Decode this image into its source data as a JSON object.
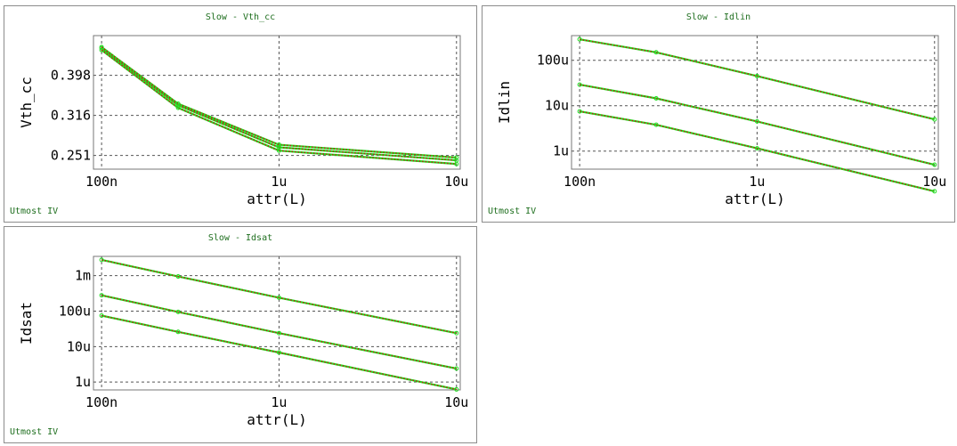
{
  "footer_label": "Utmost IV",
  "colors": {
    "series_line": "#22dd22",
    "series_dots": "#cc1111",
    "markers": "#22dd22",
    "grid": "#555555"
  },
  "chart_data": [
    {
      "type": "line",
      "title": "Slow - Vth_cc",
      "xlabel": "attr(L)",
      "ylabel": "Vth_cc",
      "xscale": "log",
      "yscale": "log",
      "xlim": [
        9e-08,
        1.05e-05
      ],
      "ylim": [
        0.232,
        0.5
      ],
      "xticks": [
        1e-07,
        1e-06,
        1e-05
      ],
      "xtick_labels": [
        "100n",
        "1u",
        "10u"
      ],
      "yticks": [
        0.251,
        0.316,
        0.398
      ],
      "ytick_labels": [
        "0.251",
        "0.316",
        "0.398"
      ],
      "grid": true,
      "x": [
        1e-07,
        2.7e-07,
        1e-06,
        1e-05
      ],
      "series": [
        {
          "values": [
            0.465,
            0.335,
            0.263,
            0.244
          ]
        },
        {
          "values": [
            0.46,
            0.33,
            0.258,
            0.239
          ]
        },
        {
          "values": [
            0.468,
            0.338,
            0.267,
            0.248
          ]
        }
      ]
    },
    {
      "type": "line",
      "title": "Slow - Idlin",
      "xlabel": "attr(L)",
      "ylabel": "Idlin",
      "xscale": "log",
      "yscale": "log",
      "xlim": [
        9e-08,
        1.05e-05
      ],
      "ylim": [
        4e-07,
        0.00035
      ],
      "xticks": [
        1e-07,
        1e-06,
        1e-05
      ],
      "xtick_labels": [
        "100n",
        "1u",
        "10u"
      ],
      "yticks": [
        1e-06,
        1e-05,
        0.0001
      ],
      "ytick_labels": [
        "1u",
        "10u",
        "100u"
      ],
      "grid": true,
      "x": [
        1e-07,
        2.7e-07,
        1e-06,
        1e-05
      ],
      "series": [
        {
          "values": [
            0.00029,
            0.00015,
            4.5e-05,
            5e-06
          ]
        },
        {
          "values": [
            2.9e-05,
            1.45e-05,
            4.5e-06,
            5e-07
          ]
        },
        {
          "values": [
            7.5e-06,
            3.8e-06,
            1.15e-06,
            1.3e-07
          ]
        }
      ]
    },
    {
      "type": "line",
      "title": "Slow - Idsat",
      "xlabel": "attr(L)",
      "ylabel": "Idsat",
      "xscale": "log",
      "yscale": "log",
      "xlim": [
        9e-08,
        1.05e-05
      ],
      "ylim": [
        6e-07,
        0.0035
      ],
      "xticks": [
        1e-07,
        1e-06,
        1e-05
      ],
      "xtick_labels": [
        "100n",
        "1u",
        "10u"
      ],
      "yticks": [
        1e-06,
        1e-05,
        0.0001,
        0.001
      ],
      "ytick_labels": [
        "1u",
        "10u",
        "100u",
        "1m"
      ],
      "grid": true,
      "x": [
        1e-07,
        2.7e-07,
        1e-06,
        1e-05
      ],
      "series": [
        {
          "values": [
            0.0028,
            0.00095,
            0.00024,
            2.4e-05
          ]
        },
        {
          "values": [
            0.00028,
            9.5e-05,
            2.4e-05,
            2.4e-06
          ]
        },
        {
          "values": [
            7.5e-05,
            2.6e-05,
            6.8e-06,
            6.2e-07
          ]
        }
      ]
    }
  ]
}
